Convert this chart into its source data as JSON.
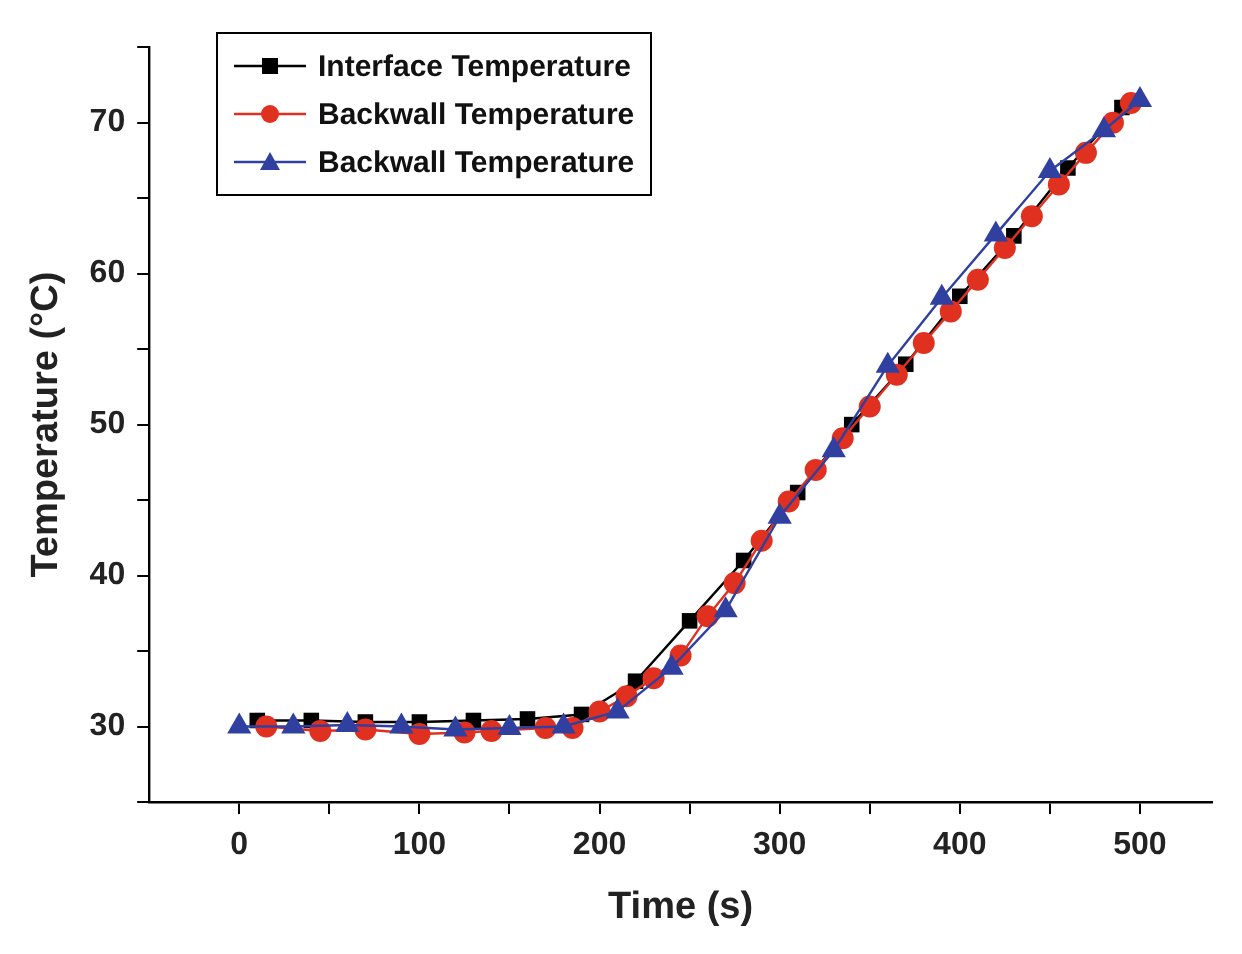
{
  "chart_data": {
    "type": "line",
    "xlabel": "Time (s)",
    "ylabel": "Temperature (°C)",
    "xlim": [
      -50,
      540
    ],
    "ylim": [
      25,
      75
    ],
    "xticks": [
      0,
      {
        "value": 50,
        "label": null
      },
      100,
      {
        "value": 150,
        "label": null
      },
      200,
      {
        "value": 250,
        "label": null
      },
      300,
      {
        "value": 350,
        "label": null
      },
      400,
      {
        "value": 450,
        "label": null
      },
      500
    ],
    "yticks": [
      {
        "value": 25,
        "label": null
      },
      30,
      {
        "value": 35,
        "label": null
      },
      40,
      {
        "value": 45,
        "label": null
      },
      50,
      {
        "value": 55,
        "label": null
      },
      60,
      {
        "value": 65,
        "label": null
      },
      70,
      {
        "value": 75,
        "label": null
      }
    ],
    "grid": false,
    "legend": "top left",
    "line_style": "solid",
    "series": [
      {
        "name": "Interface Temperature",
        "color": "#000000",
        "marker": "square",
        "x": [
          10,
          40,
          70,
          100,
          130,
          160,
          190,
          220,
          250,
          280,
          310,
          340,
          370,
          400,
          430,
          460,
          490
        ],
        "values": [
          30.4,
          30.4,
          30.3,
          30.3,
          30.4,
          30.5,
          30.8,
          33.0,
          37.0,
          41.0,
          45.5,
          50.0,
          54.0,
          58.5,
          62.5,
          67.0,
          71.0
        ]
      },
      {
        "name": "Backwall Temperature",
        "color": "#e03020",
        "marker": "circle",
        "x": [
          15,
          45,
          70,
          100,
          125,
          140,
          170,
          185,
          200,
          215,
          230,
          245,
          260,
          275,
          290,
          305,
          320,
          335,
          350,
          365,
          380,
          395,
          410,
          425,
          440,
          455,
          470,
          485,
          495
        ],
        "values": [
          30.0,
          29.7,
          29.8,
          29.5,
          29.6,
          29.7,
          29.9,
          29.9,
          31.0,
          32.0,
          33.2,
          34.7,
          37.3,
          39.5,
          42.3,
          44.9,
          47.0,
          49.1,
          51.2,
          53.3,
          55.4,
          57.5,
          59.6,
          61.7,
          63.8,
          65.9,
          68.0,
          70.0,
          71.3
        ]
      },
      {
        "name": "Backwall Temperature",
        "color": "#3040a0",
        "marker": "triangle",
        "x": [
          0,
          30,
          60,
          90,
          120,
          150,
          180,
          210,
          240,
          270,
          300,
          330,
          360,
          390,
          420,
          450,
          480,
          500
        ],
        "values": [
          30.0,
          30.0,
          30.1,
          30.0,
          29.8,
          29.9,
          30.0,
          31.0,
          33.9,
          37.7,
          43.9,
          48.3,
          53.9,
          58.4,
          62.6,
          66.8,
          69.5,
          71.5
        ]
      }
    ]
  }
}
